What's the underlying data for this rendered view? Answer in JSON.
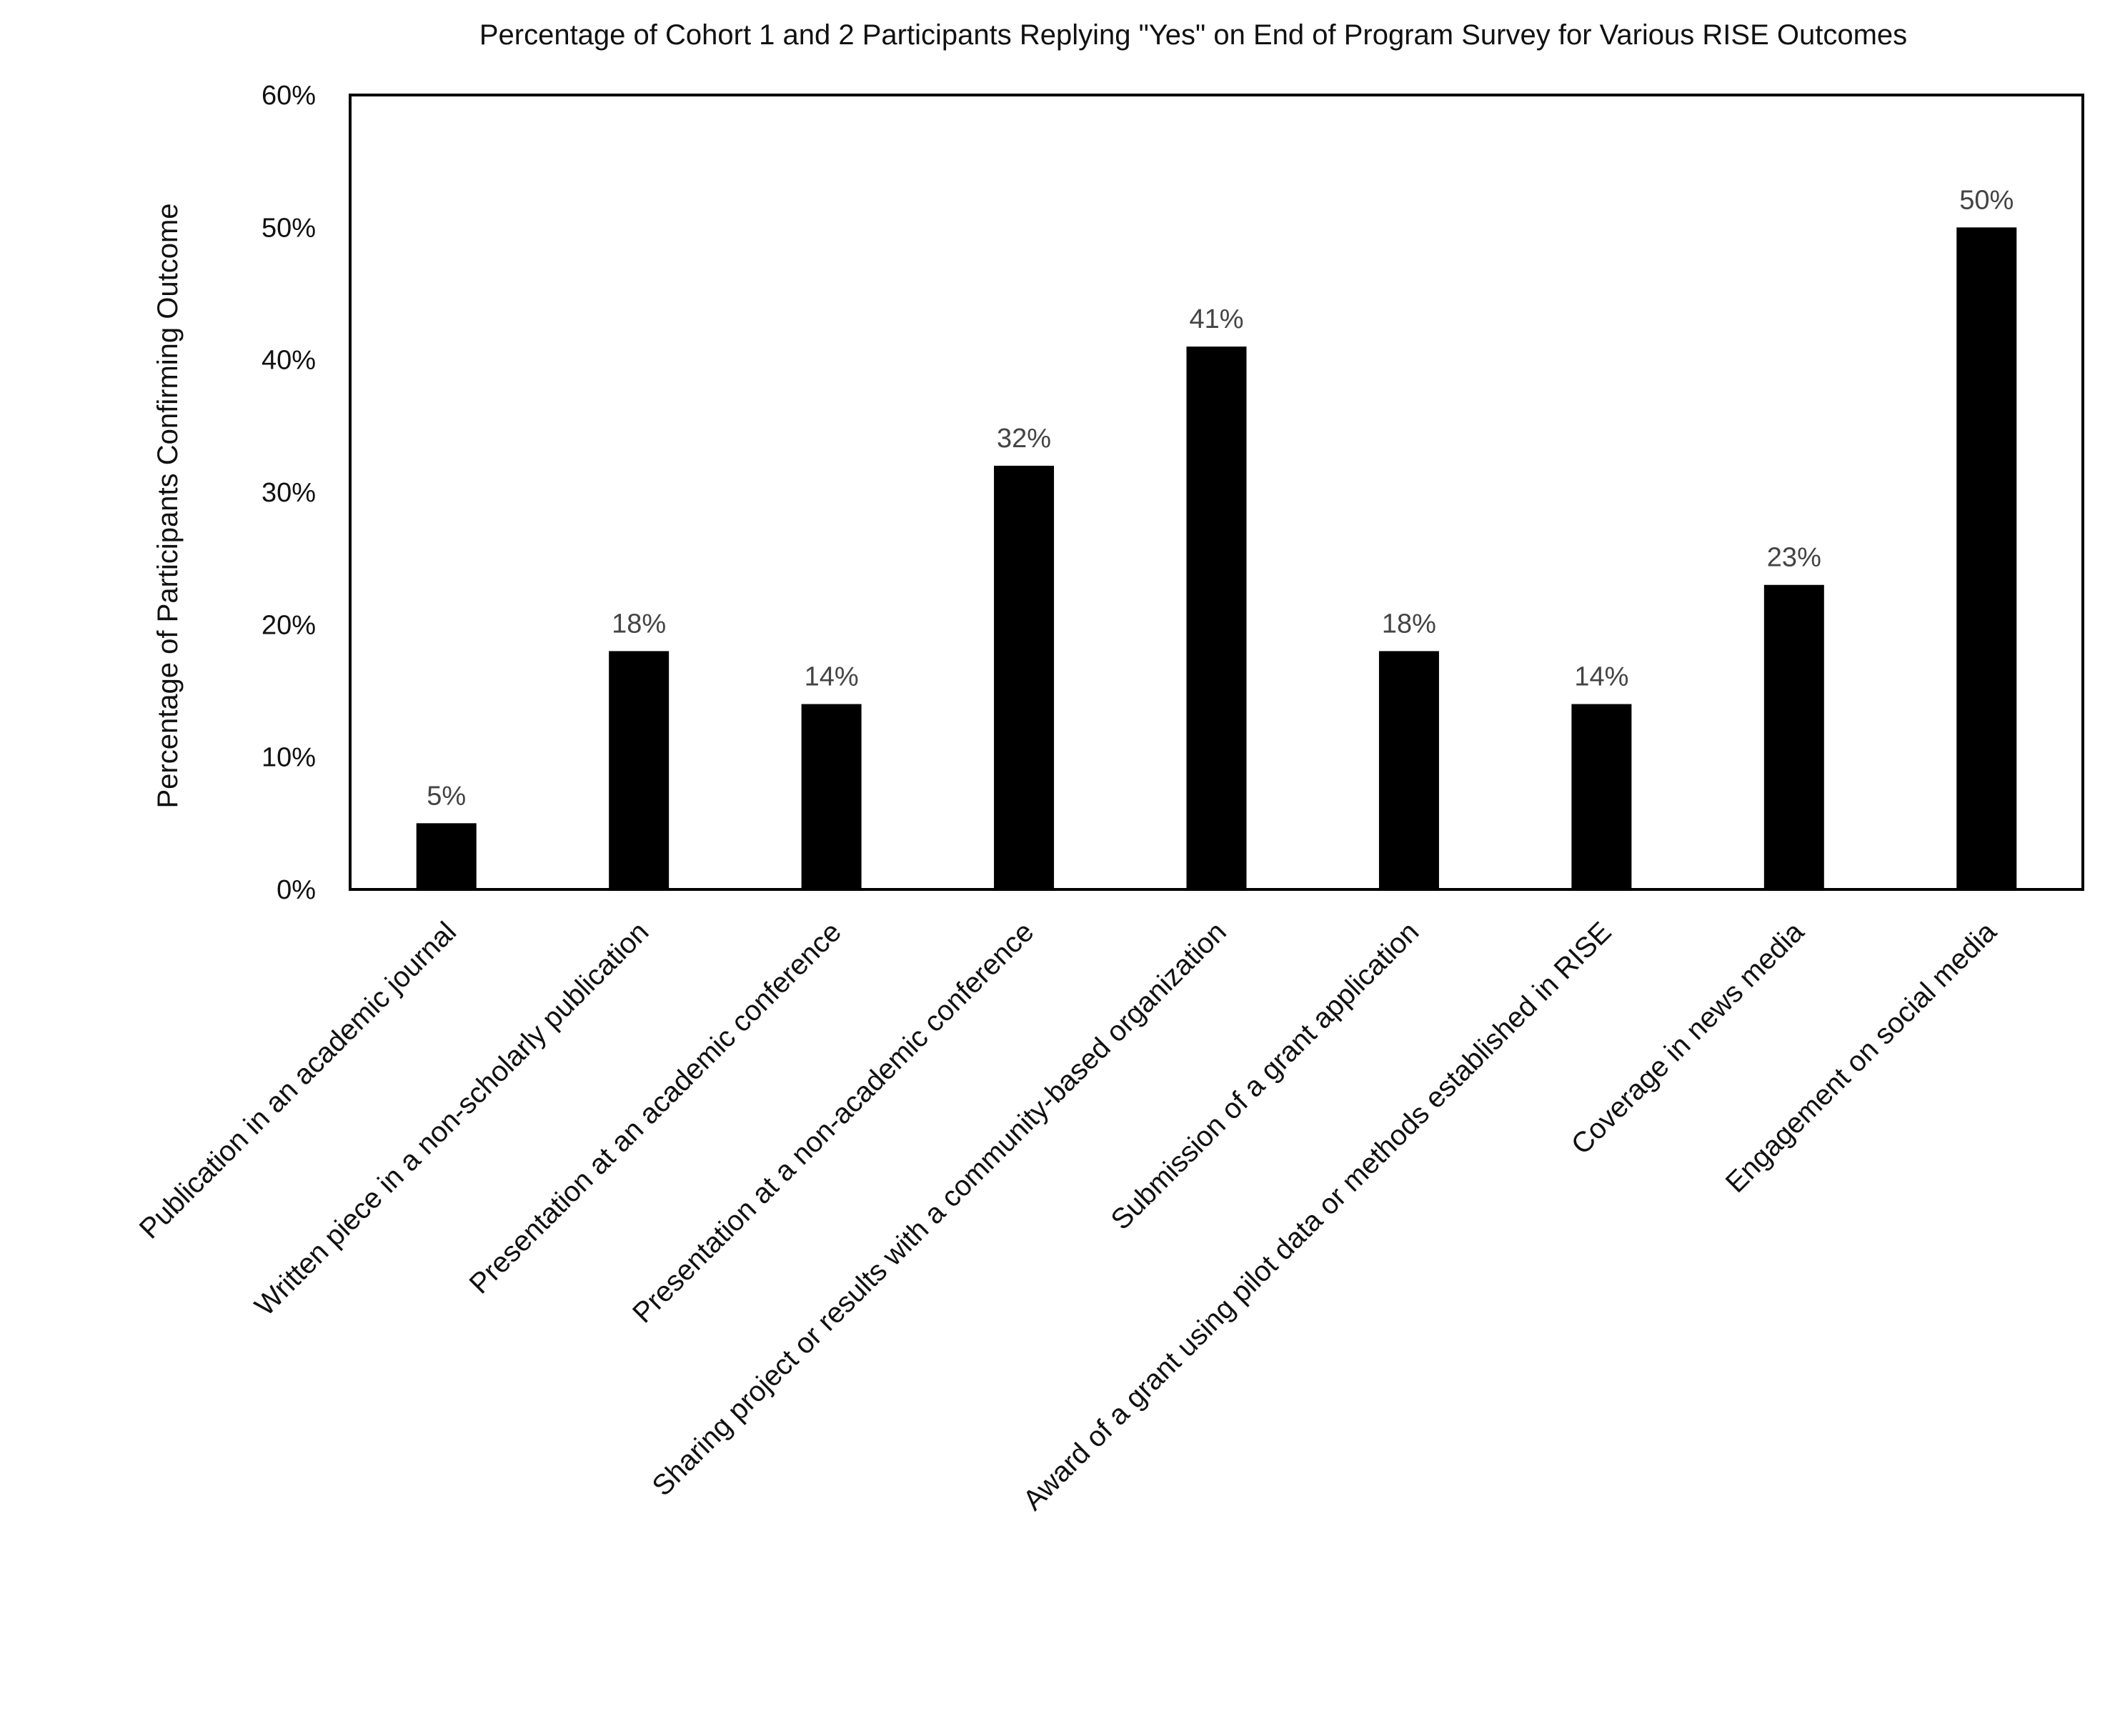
{
  "chart_data": {
    "type": "bar",
    "title": "Percentage of Cohort 1 and 2 Participants Replying \"Yes\" on End of Program Survey for Various RISE Outcomes",
    "xlabel": "",
    "ylabel": "Percentage of Participants Confirming Outcome",
    "ylim": [
      0,
      60
    ],
    "yticks": [
      0,
      10,
      20,
      30,
      40,
      50,
      60
    ],
    "ytick_labels": [
      "0%",
      "10%",
      "20%",
      "30%",
      "40%",
      "50%",
      "60%"
    ],
    "categories": [
      "Publication in an academic journal",
      "Written piece in a non-scholarly publication",
      "Presentation at an academic conference",
      "Presentation at a non-academic conference",
      "Sharing project or results with a community-based organization",
      "Submission of a grant application",
      "Award of a grant using pilot data or methods established in RISE",
      "Coverage in news media",
      "Engagement on social media"
    ],
    "values": [
      5,
      18,
      14,
      32,
      41,
      18,
      14,
      23,
      50
    ],
    "data_labels": [
      "5%",
      "18%",
      "14%",
      "32%",
      "41%",
      "18%",
      "14%",
      "23%",
      "50%"
    ],
    "bar_color": "#000000",
    "grid": false,
    "legend": "none"
  }
}
